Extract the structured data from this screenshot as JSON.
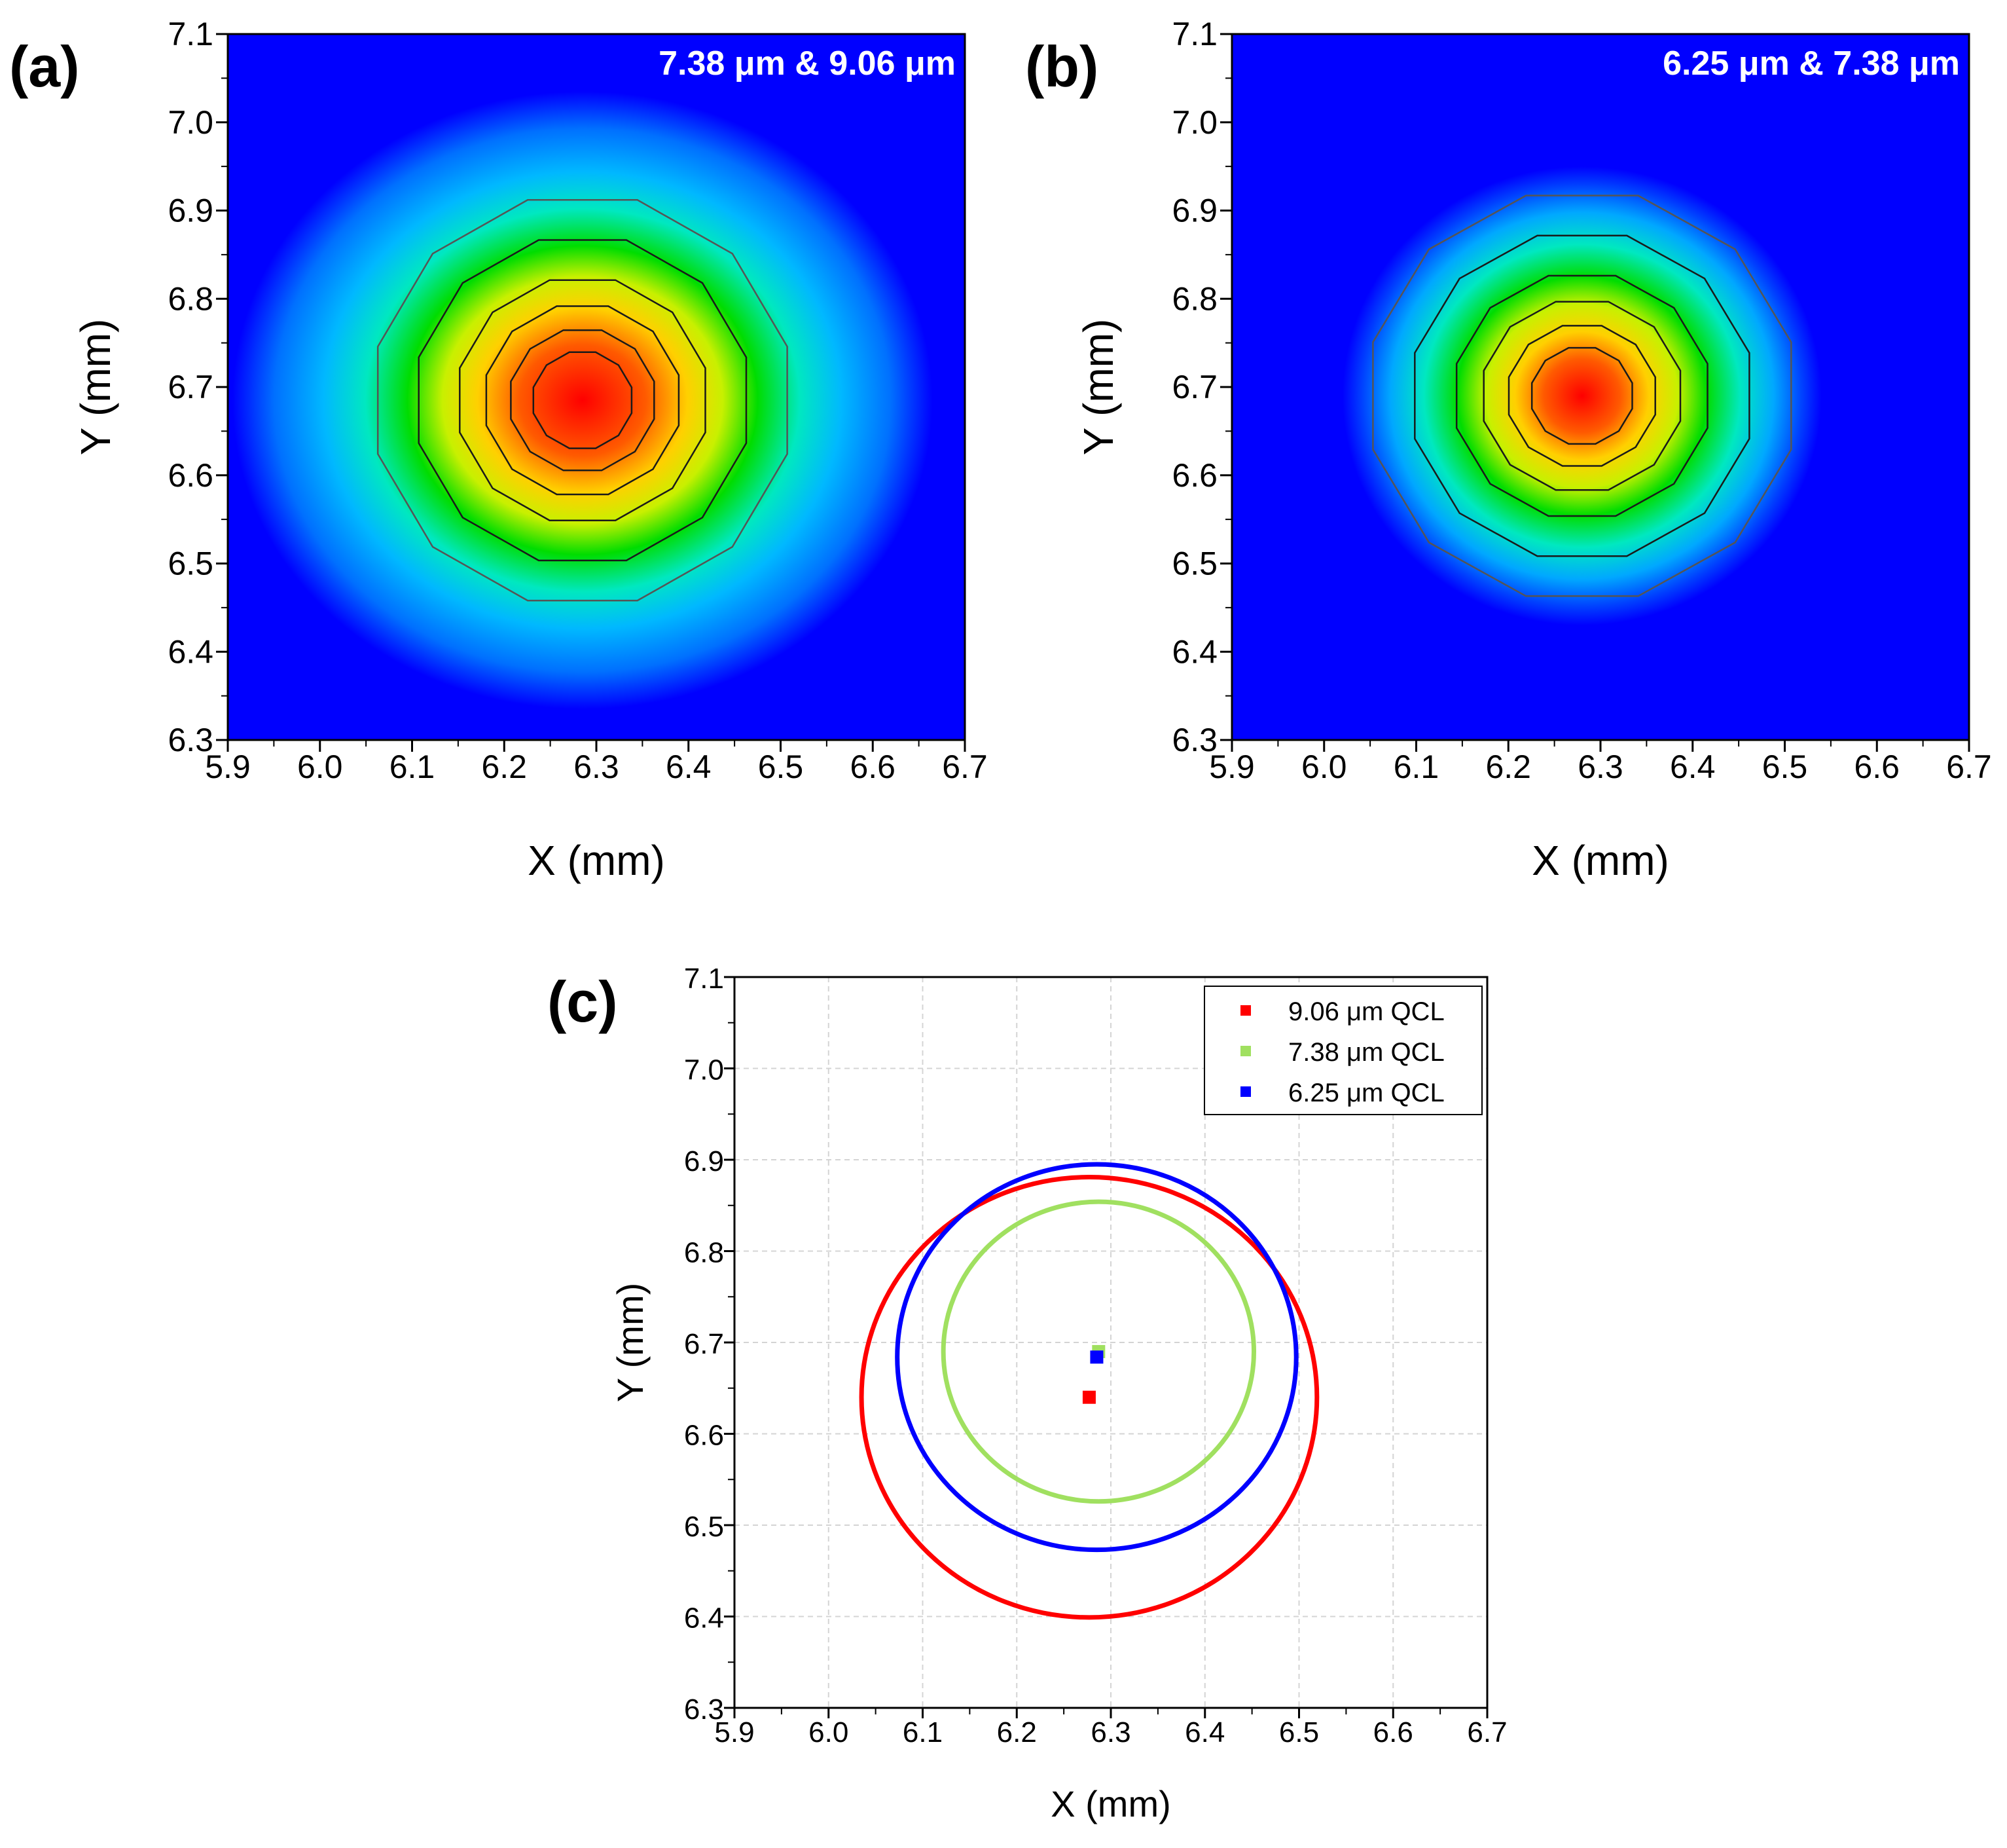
{
  "chart_data": [
    {
      "type": "heatmap",
      "panel_label": "(a)",
      "inset_label": "7.38 μm & 9.06 μm",
      "xlabel": "X (mm)",
      "ylabel": "Y (mm)",
      "xlim": [
        5.9,
        6.7
      ],
      "ylim": [
        6.3,
        7.1
      ],
      "x_ticks": [
        "5.9",
        "6.0",
        "6.1",
        "6.2",
        "6.3",
        "6.4",
        "6.5",
        "6.6",
        "6.7"
      ],
      "y_ticks": [
        "6.3",
        "6.4",
        "6.5",
        "6.6",
        "6.7",
        "6.8",
        "6.9",
        "7.0",
        "7.1"
      ],
      "peak_center": [
        6.285,
        6.685
      ],
      "radius_x": 0.23,
      "radius_y": 0.235,
      "extent_x": 0.38,
      "extent_y": 0.35,
      "colormap": [
        "#0000ff",
        "#00e8ff",
        "#00e000",
        "#ffff00",
        "#ff0000"
      ]
    },
    {
      "type": "heatmap",
      "panel_label": "(b)",
      "inset_label": "6.25 μm & 7.38 μm",
      "xlabel": "X (mm)",
      "ylabel": "Y (mm)",
      "xlim": [
        5.9,
        6.7
      ],
      "ylim": [
        6.3,
        7.1
      ],
      "x_ticks": [
        "5.9",
        "6.0",
        "6.1",
        "6.2",
        "6.3",
        "6.4",
        "6.5",
        "6.6",
        "6.7"
      ],
      "y_ticks": [
        "6.3",
        "6.4",
        "6.5",
        "6.6",
        "6.7",
        "6.8",
        "6.9",
        "7.0",
        "7.1"
      ],
      "peak_center": [
        6.28,
        6.69
      ],
      "radius_x": 0.235,
      "radius_y": 0.235,
      "extent_x": 0.26,
      "extent_y": 0.26,
      "colormap": [
        "#0000ff",
        "#00e8ff",
        "#00e000",
        "#ffff00",
        "#ff0000"
      ]
    },
    {
      "type": "scatter",
      "panel_label": "(c)",
      "xlabel": "X (mm)",
      "ylabel": "Y (mm)",
      "xlim": [
        5.9,
        6.7
      ],
      "ylim": [
        6.3,
        7.1
      ],
      "x_ticks": [
        "5.9",
        "6.0",
        "6.1",
        "6.2",
        "6.3",
        "6.4",
        "6.5",
        "6.6",
        "6.7"
      ],
      "y_ticks": [
        "6.3",
        "6.4",
        "6.5",
        "6.6",
        "6.7",
        "6.8",
        "6.9",
        "7.0",
        "7.1"
      ],
      "grid": true,
      "legend_position": "top-right",
      "series": [
        {
          "name": "9.06 μm QCL",
          "color": "#ff0000",
          "center": [
            6.277,
            6.64
          ],
          "radius_x": 0.242,
          "radius_y": 0.241
        },
        {
          "name": "7.38 μm QCL",
          "color": "#a0e060",
          "center": [
            6.287,
            6.69
          ],
          "radius_x": 0.165,
          "radius_y": 0.164
        },
        {
          "name": "6.25 μm QCL",
          "color": "#0000ff",
          "center": [
            6.285,
            6.684
          ],
          "radius_x": 0.212,
          "radius_y": 0.211
        }
      ]
    }
  ]
}
